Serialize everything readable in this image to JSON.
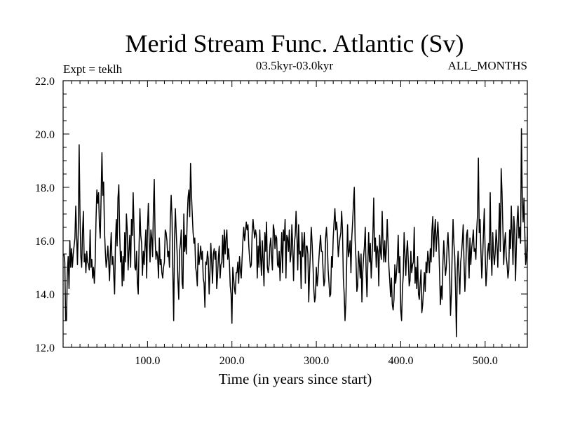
{
  "chart_data": {
    "type": "line",
    "title": "Merid Stream Func. Atlantic (Sv)",
    "subtitle": "03.5kyr-03.0kyr",
    "annotation_left": "Expt = teklh",
    "annotation_right": "ALL_MONTHS",
    "xlabel": "Time (in years since start)",
    "ylabel": "",
    "xlim": [
      0,
      550
    ],
    "ylim": [
      12.0,
      22.0
    ],
    "x_ticks": [
      100,
      200,
      300,
      400,
      500
    ],
    "x_tick_labels": [
      "100.0",
      "200.0",
      "300.0",
      "400.0",
      "500.0"
    ],
    "y_ticks": [
      12,
      14,
      16,
      18,
      20,
      22
    ],
    "y_tick_labels": [
      "12.0",
      "14.0",
      "16.0",
      "18.0",
      "20.0",
      "22.0"
    ],
    "grid": false,
    "line_color": "#000000",
    "x_start": 1,
    "x_step": 1,
    "series": [
      {
        "values": [
          15.5,
          15.2,
          13.0,
          13.0,
          14.8,
          15.4,
          14.2,
          16.0,
          15.0,
          15.7,
          15.0,
          15.5,
          15.8,
          16.1,
          17.3,
          16.2,
          15.1,
          16.5,
          19.6,
          17.0,
          15.4,
          15.0,
          16.3,
          17.1,
          15.2,
          15.5,
          14.8,
          15.6,
          15.2,
          15.1,
          14.9,
          16.4,
          15.0,
          15.3,
          14.6,
          15.0,
          14.4,
          15.2,
          16.8,
          17.9,
          17.4,
          17.8,
          16.6,
          16.1,
          17.6,
          19.3,
          17.7,
          18.2,
          16.4,
          15.6,
          15.0,
          15.3,
          15.8,
          15.2,
          14.5,
          15.6,
          16.3,
          15.1,
          15.4,
          14.7,
          14.0,
          15.9,
          16.8,
          15.8,
          17.6,
          18.1,
          16.3,
          15.2,
          15.6,
          14.3,
          15.4,
          14.5,
          16.3,
          15.2,
          17.0,
          16.4,
          14.9,
          15.6,
          16.2,
          15.0,
          16.8,
          16.2,
          17.8,
          16.5,
          15.0,
          14.9,
          15.6,
          14.4,
          14.0,
          15.8,
          17.2,
          16.2,
          15.9,
          14.7,
          15.6,
          15.1,
          15.8,
          16.4,
          14.6,
          16.5,
          17.4,
          16.0,
          15.2,
          16.4,
          16.1,
          15.4,
          17.2,
          18.3,
          16.1,
          15.3,
          15.6,
          15.4,
          14.6,
          16.1,
          15.1,
          15.3,
          14.8,
          14.6,
          15.0,
          15.2,
          16.4,
          16.3,
          16.0,
          15.4,
          15.6,
          15.0,
          16.8,
          17.7,
          16.9,
          14.8,
          13.0,
          16.0,
          17.2,
          16.3,
          15.6,
          14.5,
          13.8,
          15.6,
          15.9,
          16.4,
          14.4,
          14.2,
          17.0,
          15.6,
          16.2,
          15.5,
          16.8,
          17.6,
          17.9,
          16.9,
          18.9,
          17.8,
          17.0,
          16.3,
          15.9,
          16.1,
          15.0,
          14.8,
          14.3,
          15.9,
          15.1,
          15.4,
          15.8,
          15.3,
          15.6,
          14.6,
          14.4,
          13.5,
          15.2,
          15.1,
          15.6,
          15.3,
          14.0,
          14.8,
          15.9,
          15.2,
          14.4,
          15.5,
          15.7,
          15.3,
          15.6,
          14.2,
          14.7,
          15.4,
          15.8,
          14.6,
          15.1,
          15.2,
          16.2,
          15.0,
          16.4,
          15.5,
          16.1,
          16.4,
          15.3,
          15.7,
          15.2,
          14.3,
          14.0,
          12.9,
          15.0,
          14.6,
          14.2,
          14.0,
          14.8,
          14.8,
          15.2,
          14.4,
          15.4,
          14.9,
          14.6,
          15.3,
          16.0,
          16.5,
          16.0,
          16.3,
          16.7,
          16.4,
          16.6,
          15.8,
          15.3,
          15.0,
          15.1,
          16.3,
          16.8,
          16.4,
          16.1,
          16.4,
          16.2,
          14.6,
          15.8,
          15.0,
          16.4,
          15.4,
          14.7,
          16.0,
          15.2,
          14.3,
          16.3,
          15.6,
          16.7,
          15.0,
          14.8,
          15.1,
          15.8,
          16.1,
          15.4,
          14.9,
          16.6,
          16.4,
          15.7,
          16.2,
          16.1,
          15.1,
          15.0,
          15.6,
          14.5,
          15.4,
          16.3,
          14.8,
          16.4,
          16.0,
          16.8,
          14.6,
          16.2,
          16.1,
          15.6,
          16.4,
          15.2,
          15.5,
          16.6,
          15.8,
          14.5,
          15.9,
          16.2,
          17.1,
          16.2,
          14.9,
          16.6,
          15.5,
          15.6,
          14.2,
          16.3,
          15.4,
          15.9,
          16.3,
          14.4,
          15.8,
          15.8,
          15.5,
          13.7,
          14.8,
          15.6,
          16.5,
          15.9,
          15.1,
          14.2,
          13.7,
          13.9,
          15.0,
          14.3,
          14.7,
          15.3,
          15.8,
          16.2,
          15.6,
          15.6,
          14.9,
          14.3,
          14.5,
          16.1,
          16.5,
          15.9,
          14.9,
          14.4,
          13.9,
          14.0,
          15.4,
          15.0,
          16.1,
          16.7,
          17.2,
          16.4,
          16.7,
          16.3,
          15.4,
          15.8,
          16.1,
          16.3,
          17.1,
          16.4,
          14.6,
          14.0,
          13.0,
          13.7,
          15.2,
          16.6,
          15.4,
          15.6,
          16.0,
          14.8,
          16.1,
          16.7,
          17.4,
          18.0,
          16.0,
          15.3,
          14.1,
          14.3,
          15.6,
          15.2,
          14.6,
          15.5,
          13.7,
          14.8,
          15.4,
          15.8,
          16.5,
          14.8,
          13.9,
          15.1,
          16.3,
          15.2,
          15.9,
          14.6,
          15.3,
          16.2,
          17.6,
          15.6,
          16.1,
          15.0,
          15.8,
          15.6,
          14.3,
          16.2,
          15.6,
          15.3,
          17.1,
          15.9,
          15.2,
          16.0,
          15.2,
          15.7,
          16.8,
          15.9,
          15.0,
          14.5,
          13.9,
          14.6,
          13.6,
          13.4,
          13.8,
          15.1,
          14.4,
          14.8,
          15.3,
          16.2,
          14.8,
          15.4,
          13.4,
          13.0,
          14.2,
          14.7,
          16.3,
          15.5,
          14.7,
          15.6,
          16.0,
          15.2,
          14.3,
          14.5,
          15.6,
          14.8,
          15.1,
          15.2,
          16.5,
          14.4,
          15.0,
          14.2,
          15.4,
          14.0,
          13.8,
          14.4,
          14.9,
          13.3,
          13.6,
          14.2,
          14.8,
          14.1,
          15.2,
          14.8,
          15.6,
          15.3,
          14.8,
          15.7,
          15.2,
          16.4,
          16.9,
          15.4,
          16.3,
          16.8,
          15.6,
          16.2,
          16.7,
          16.0,
          14.8,
          13.6,
          14.3,
          13.8,
          15.2,
          16.0,
          15.3,
          14.7,
          15.0,
          15.8,
          16.3,
          15.6,
          14.7,
          13.2,
          14.0,
          15.6,
          16.8,
          15.9,
          15.4,
          14.1,
          12.4,
          14.9,
          15.6,
          14.7,
          14.0,
          15.2,
          15.5,
          16.0,
          16.6,
          15.2,
          14.1,
          14.8,
          16.2,
          16.4,
          15.5,
          14.6,
          16.1,
          15.1,
          15.7,
          16.0,
          16.4,
          15.6,
          15.7,
          15.3,
          16.4,
          17.0,
          19.1,
          16.3,
          16.8,
          15.6,
          14.6,
          15.3,
          16.3,
          17.2,
          15.6,
          14.3,
          14.8,
          15.6,
          15.9,
          15.3,
          17.8,
          15.5,
          14.7,
          16.3,
          15.5,
          15.1,
          15.6,
          16.4,
          15.9,
          15.0,
          16.2,
          17.4,
          15.6,
          18.7,
          17.8,
          16.5,
          15.1,
          15.9,
          16.3,
          15.4,
          15.1,
          14.6,
          14.9,
          16.4,
          15.7,
          17.3,
          16.2,
          15.1,
          16.9,
          16.4,
          14.5,
          15.8,
          16.8,
          17.3,
          16.1,
          16.5,
          15.9,
          20.2,
          17.6,
          16.7,
          17.6,
          16.3,
          15.1,
          15.4,
          16.2,
          16.5,
          15.8,
          16.0,
          15.7,
          16.4,
          16.2,
          15.6,
          15.8
        ]
      }
    ]
  }
}
